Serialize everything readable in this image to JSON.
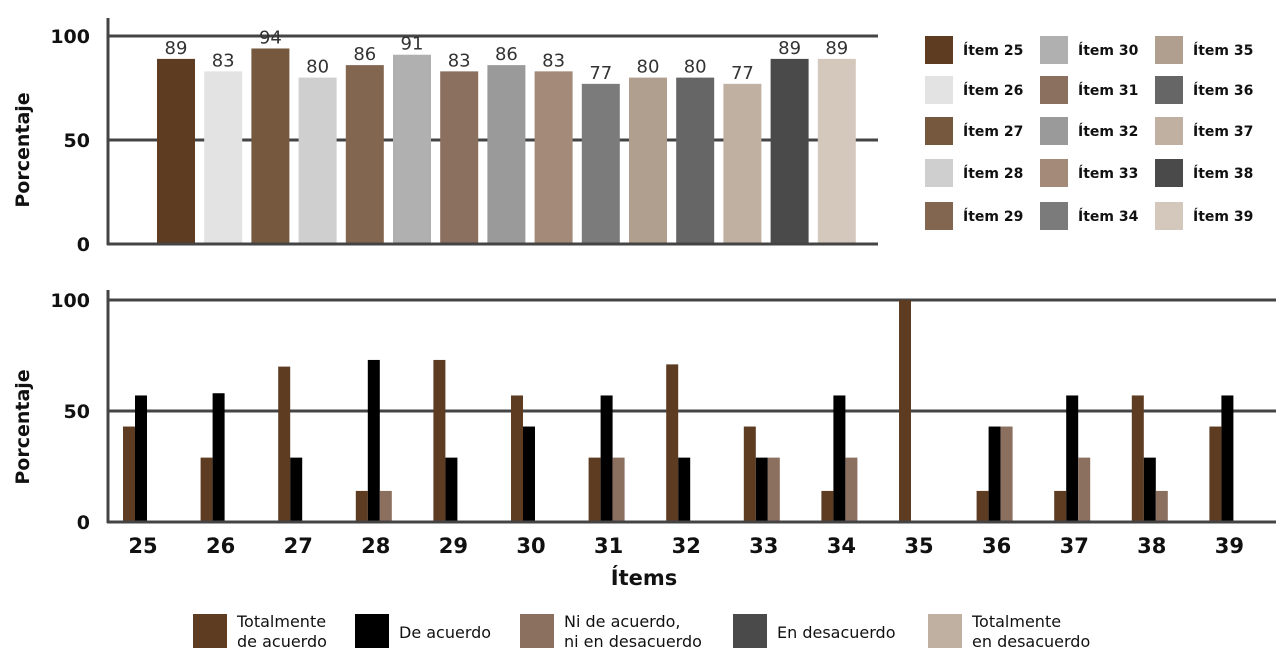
{
  "chart_data": [
    {
      "type": "bar",
      "ylabel": "Porcentaje",
      "ylim": [
        0,
        100
      ],
      "yticks": [
        "0",
        "50",
        "100"
      ],
      "grid": true,
      "categories": [
        "Ítem 25",
        "Ítem 26",
        "Ítem 27",
        "Ítem 28",
        "Ítem 29",
        "Ítem 30",
        "Ítem 31",
        "Ítem 32",
        "Ítem 33",
        "Ítem 34",
        "Ítem 35",
        "Ítem 36",
        "Ítem 37",
        "Ítem 38",
        "Ítem 39"
      ],
      "values": [
        89,
        83,
        94,
        80,
        86,
        91,
        83,
        86,
        83,
        77,
        80,
        80,
        77,
        89,
        89
      ],
      "data_labels": [
        "89",
        "83",
        "94",
        "80",
        "86",
        "91",
        "83",
        "86",
        "83",
        "77",
        "80",
        "80",
        "77",
        "89",
        "89"
      ],
      "colors": [
        "#5e3c22",
        "#e3e3e3",
        "#76583e",
        "#cfcfcf",
        "#836650",
        "#b0b0b0",
        "#8b7060",
        "#9a9a9a",
        "#a48a78",
        "#7b7b7b",
        "#b09e8f",
        "#666666",
        "#bfb0a1",
        "#4a4a4a",
        "#d4c8bd"
      ],
      "legend_position": "right"
    },
    {
      "type": "bar",
      "xlabel": "Ítems",
      "ylabel": "Porcentaje",
      "ylim": [
        0,
        100
      ],
      "yticks": [
        "0",
        "50",
        "100"
      ],
      "grid": true,
      "categories": [
        "25",
        "26",
        "27",
        "28",
        "29",
        "30",
        "31",
        "32",
        "33",
        "34",
        "35",
        "36",
        "37",
        "38",
        "39"
      ],
      "series": [
        {
          "name": "Totalmente de acuerdo",
          "color": "#5e3c22",
          "values": [
            43,
            29,
            70,
            14,
            73,
            57,
            29,
            71,
            43,
            14,
            100,
            14,
            14,
            57,
            43
          ]
        },
        {
          "name": "De acuerdo",
          "color": "#000000",
          "values": [
            57,
            58,
            29,
            73,
            29,
            43,
            57,
            29,
            29,
            57,
            0,
            43,
            57,
            29,
            57
          ]
        },
        {
          "name": "Ni de acuerdo, ni en desacuerdo",
          "color": "#8b7060",
          "values": [
            0,
            0,
            0,
            14,
            0,
            0,
            29,
            0,
            29,
            29,
            0,
            43,
            29,
            14,
            0
          ]
        },
        {
          "name": "En desacuerdo",
          "color": "#4a4a4a",
          "values": [
            0,
            0,
            0,
            0,
            0,
            0,
            0,
            0,
            0,
            0,
            0,
            0,
            0,
            0,
            0
          ]
        },
        {
          "name": "Totalmente en desacuerdo",
          "color": "#bfb0a1",
          "values": [
            0,
            0,
            0,
            0,
            0,
            0,
            0,
            0,
            0,
            0,
            0,
            0,
            0,
            0,
            0
          ]
        }
      ],
      "legend_position": "bottom",
      "legend_labels": [
        [
          "Totalmente",
          "de acuerdo"
        ],
        [
          "De acuerdo"
        ],
        [
          "Ni de acuerdo,",
          "ni en desacuerdo"
        ],
        [
          "En desacuerdo"
        ],
        [
          "Totalmente",
          "en desacuerdo"
        ]
      ]
    }
  ]
}
